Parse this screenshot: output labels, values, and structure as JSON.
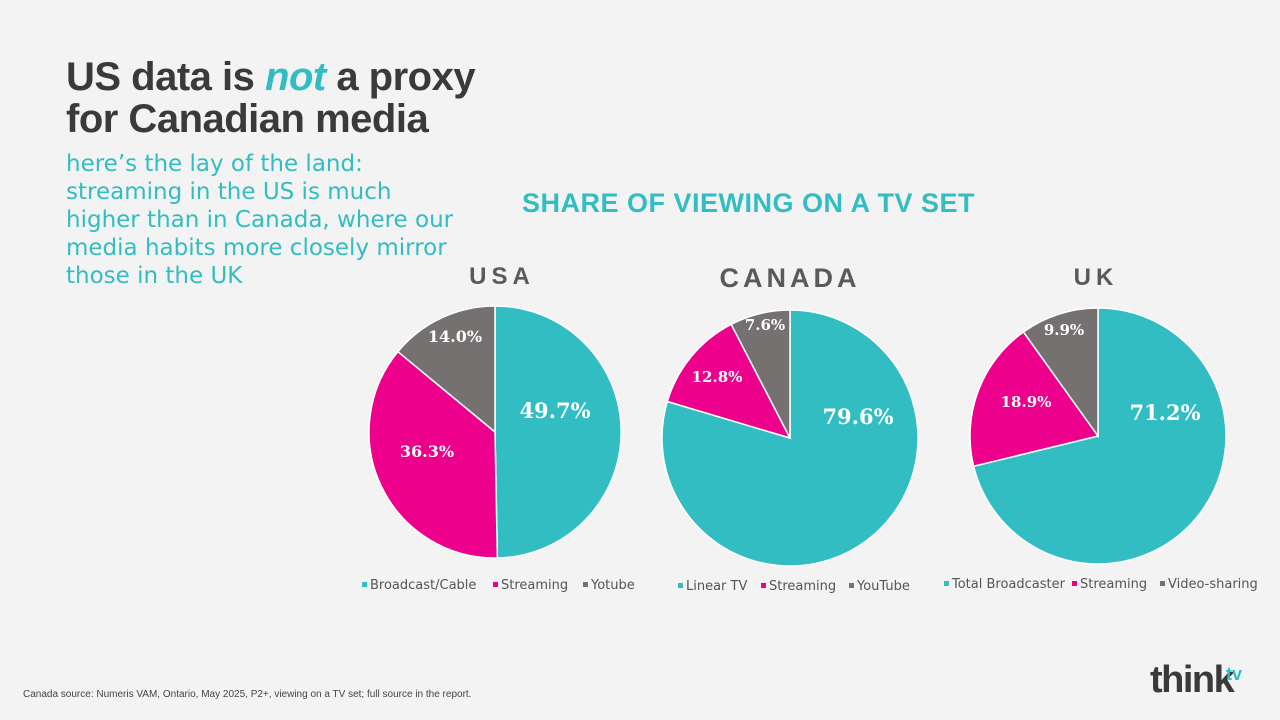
{
  "title": {
    "line1_prefix": "US data is ",
    "line1_emph": "not",
    "line1_suffix": " a proxy",
    "line2": "for Canadian media"
  },
  "subtitle": "here’s the lay of the land: streaming in the US is much higher than in Canada, where our media habits more closely mirror those in the UK",
  "colors": {
    "teal": "#31bdc1",
    "magenta": "#ec008c",
    "gray": "#767171"
  },
  "chart_data": {
    "type": "pie",
    "title": "SHARE OF VIEWING ON A TV SET",
    "charts": [
      {
        "country": "USA",
        "slices": [
          {
            "label": "Broadcast/Cable",
            "value": 49.7,
            "display": "49.7%",
            "color": "#31bdc1"
          },
          {
            "label": "Streaming",
            "value": 36.3,
            "display": "36.3%",
            "color": "#ec008c"
          },
          {
            "label": "Yotube",
            "value": 14.0,
            "display": "14.0%",
            "color": "#767171"
          }
        ]
      },
      {
        "country": "CANADA",
        "slices": [
          {
            "label": "Linear TV",
            "value": 79.6,
            "display": "79.6%",
            "color": "#31bdc1"
          },
          {
            "label": "Streaming",
            "value": 12.8,
            "display": "12.8%",
            "color": "#ec008c"
          },
          {
            "label": "YouTube",
            "value": 7.6,
            "display": "7.6%",
            "color": "#767171"
          }
        ]
      },
      {
        "country": "UK",
        "slices": [
          {
            "label": "Total Broadcaster",
            "value": 71.2,
            "display": "71.2%",
            "color": "#31bdc1"
          },
          {
            "label": "Streaming",
            "value": 18.9,
            "display": "18.9%",
            "color": "#ec008c"
          },
          {
            "label": "Video-sharing",
            "value": 9.9,
            "display": "9.9%",
            "color": "#767171"
          }
        ]
      }
    ]
  },
  "footnote": "Canada source: Numeris VAM, Ontario, May 2025, P2+, viewing on a TV set; full source in the report.",
  "logo": {
    "text": "think",
    "sup": "tv"
  }
}
